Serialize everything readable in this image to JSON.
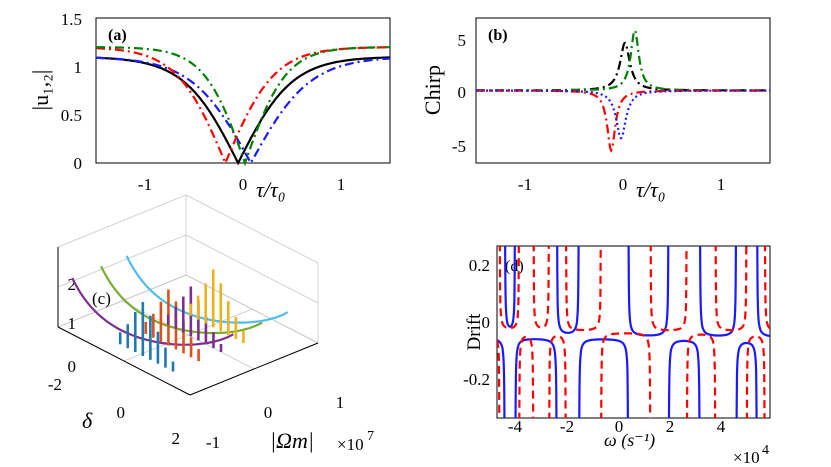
{
  "chart_data": [
    {
      "id": "a",
      "type": "line",
      "panel_label": "(a)",
      "xlabel": "τ/τ₀",
      "ylabel": "|u₁,₂|",
      "xlim": [
        -1.5,
        1.5
      ],
      "ylim": [
        0,
        1.5
      ],
      "xticks": [
        "-1",
        "0",
        "1"
      ],
      "yticks": [
        "0",
        "0.5",
        "1",
        "1.5"
      ],
      "series": [
        {
          "name": "black",
          "color": "#000000",
          "dash": "solid",
          "center": -0.05,
          "width": 0.55,
          "plateau": 1.1
        },
        {
          "name": "blue",
          "color": "#1a1aff",
          "dash": "dashdot",
          "center": 0.08,
          "width": 0.6,
          "plateau": 1.1
        },
        {
          "name": "red",
          "color": "#ff0000",
          "dash": "dashdot",
          "center": -0.18,
          "width": 0.5,
          "plateau": 1.2
        },
        {
          "name": "green",
          "color": "#008000",
          "dash": "dashdot",
          "center": 0.02,
          "width": 0.42,
          "plateau": 1.2
        }
      ]
    },
    {
      "id": "b",
      "type": "line",
      "panel_label": "(b)",
      "xlabel": "τ/τ₀",
      "ylabel": "Chirp",
      "xlim": [
        -1.5,
        1.5
      ],
      "ylim": [
        -7,
        7
      ],
      "xticks": [
        "-1",
        "0",
        "1"
      ],
      "yticks": [
        "-5",
        "0",
        "5"
      ],
      "series": [
        {
          "name": "black",
          "color": "#000000",
          "dash": "dashdot",
          "center": 0.02,
          "peak": 4.6,
          "width": 0.06
        },
        {
          "name": "green",
          "color": "#008000",
          "dash": "dashdot",
          "center": 0.12,
          "peak": 5.8,
          "width": 0.05
        },
        {
          "name": "red",
          "color": "#ff0000",
          "dash": "dashdot",
          "center": -0.12,
          "peak": -5.8,
          "width": 0.05
        },
        {
          "name": "blue",
          "color": "#1a1aff",
          "dash": "dot",
          "center": -0.02,
          "peak": -4.6,
          "width": 0.06
        }
      ]
    },
    {
      "id": "c",
      "type": "bar",
      "panel_label": "(c)",
      "xlabel": "|Ωm|",
      "ylabel": "δ",
      "x_multiplier": "×10",
      "x_multiplier_exp": "7",
      "xlim": [
        -1,
        1
      ],
      "ylim": [
        -2,
        2
      ],
      "zlim": [
        0,
        2
      ],
      "xticks": [
        "-1",
        "0",
        "1"
      ],
      "yticks": [
        "-2",
        "0",
        "2"
      ],
      "zticks": [
        "0",
        "1",
        "2"
      ],
      "stem_groups": [
        {
          "color": "#1f77b4",
          "x": -0.75,
          "heights": [
            0.3,
            0.6,
            1.0,
            1.35,
            1.1,
            0.8,
            0.5,
            0.25
          ]
        },
        {
          "color": "#d95319",
          "x": -0.35,
          "heights": [
            0.3,
            0.6,
            1.0,
            1.4,
            1.2,
            0.8,
            0.5,
            0.3
          ]
        },
        {
          "color": "#7e2f8e",
          "x": 0.0,
          "heights": [
            0.25,
            0.55,
            0.9,
            1.25,
            1.0,
            0.7,
            0.4,
            0.2
          ]
        },
        {
          "color": "#edb120",
          "x": 0.35,
          "heights": [
            0.3,
            0.6,
            1.0,
            1.45,
            1.2,
            0.85,
            0.55,
            0.3
          ]
        }
      ],
      "curves": [
        {
          "color": "#7e2f8e"
        },
        {
          "color": "#77ac30"
        },
        {
          "color": "#4dbeee"
        }
      ]
    },
    {
      "id": "d",
      "type": "line",
      "panel_label": "(d)",
      "xlabel": "ω (s⁻¹)",
      "ylabel": "Drift",
      "x_multiplier": "×10",
      "x_multiplier_exp": "4",
      "xlim": [
        -4.7,
        5.8
      ],
      "ylim": [
        -0.3,
        0.3
      ],
      "xticks": [
        "-4",
        "-2",
        "0",
        "2",
        "4"
      ],
      "yticks": [
        "-0.2",
        "0",
        "0.2"
      ],
      "series": [
        {
          "name": "Drift (solid)",
          "color": "#1a1aff",
          "dash": "solid",
          "poles": [
            -4.4,
            -4.0,
            -2.4,
            -1.55,
            0.35,
            1.9,
            3.1,
            4.5,
            5.3
          ]
        },
        {
          "name": "Drift (dashed)",
          "color": "#ff0000",
          "dash": "dash",
          "poles": [
            -4.6,
            -3.85,
            -3.3,
            -2.7,
            -2.05,
            -0.7,
            1.2,
            2.6,
            3.7,
            4.9,
            5.6
          ]
        }
      ]
    }
  ]
}
